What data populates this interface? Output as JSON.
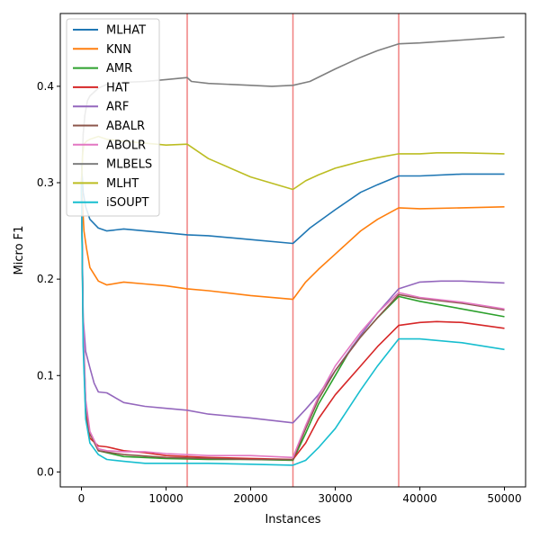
{
  "chart_data": {
    "type": "line",
    "xlabel": "Instances",
    "ylabel": "Micro F1",
    "xlim": [
      -2500,
      52500
    ],
    "ylim": [
      -0.0155,
      0.4755
    ],
    "xticks": [
      0,
      10000,
      20000,
      30000,
      40000,
      50000
    ],
    "xtick_labels": [
      "0",
      "10000",
      "20000",
      "30000",
      "40000",
      "50000"
    ],
    "yticks": [
      0.0,
      0.1,
      0.2,
      0.3,
      0.4
    ],
    "ytick_labels": [
      "0.0",
      "0.1",
      "0.2",
      "0.3",
      "0.4"
    ],
    "grid": false,
    "legend_position": "top-left",
    "vlines": [
      {
        "x": 12500,
        "color": "#f08080"
      },
      {
        "x": 25000,
        "color": "#f08080"
      },
      {
        "x": 37500,
        "color": "#f08080"
      }
    ],
    "series": [
      {
        "name": "MLHAT",
        "color": "#1f77b4",
        "points": [
          [
            0,
            0.32
          ],
          [
            200,
            0.29
          ],
          [
            500,
            0.275
          ],
          [
            1000,
            0.262
          ],
          [
            2000,
            0.253
          ],
          [
            3000,
            0.25
          ],
          [
            5000,
            0.252
          ],
          [
            7500,
            0.25
          ],
          [
            10000,
            0.248
          ],
          [
            12500,
            0.246
          ],
          [
            15000,
            0.245
          ],
          [
            20000,
            0.241
          ],
          [
            25000,
            0.237
          ],
          [
            27000,
            0.253
          ],
          [
            30000,
            0.272
          ],
          [
            33000,
            0.29
          ],
          [
            35000,
            0.298
          ],
          [
            37500,
            0.307
          ],
          [
            40000,
            0.307
          ],
          [
            45000,
            0.309
          ],
          [
            50000,
            0.309
          ]
        ]
      },
      {
        "name": "KNN",
        "color": "#ff7f0e",
        "points": [
          [
            0,
            0.3
          ],
          [
            300,
            0.25
          ],
          [
            600,
            0.232
          ],
          [
            1000,
            0.212
          ],
          [
            2000,
            0.198
          ],
          [
            3000,
            0.194
          ],
          [
            5000,
            0.197
          ],
          [
            7500,
            0.195
          ],
          [
            10000,
            0.193
          ],
          [
            12500,
            0.19
          ],
          [
            15000,
            0.188
          ],
          [
            20000,
            0.183
          ],
          [
            25000,
            0.179
          ],
          [
            26500,
            0.197
          ],
          [
            28000,
            0.21
          ],
          [
            30000,
            0.226
          ],
          [
            33000,
            0.25
          ],
          [
            35000,
            0.262
          ],
          [
            37500,
            0.274
          ],
          [
            40000,
            0.273
          ],
          [
            45000,
            0.274
          ],
          [
            50000,
            0.275
          ]
        ]
      },
      {
        "name": "AMR",
        "color": "#2ca02c",
        "points": [
          [
            0,
            0.3
          ],
          [
            200,
            0.15
          ],
          [
            500,
            0.07
          ],
          [
            1000,
            0.04
          ],
          [
            2000,
            0.022
          ],
          [
            3000,
            0.02
          ],
          [
            5000,
            0.016
          ],
          [
            10000,
            0.014
          ],
          [
            15000,
            0.013
          ],
          [
            20000,
            0.013
          ],
          [
            25000,
            0.012
          ],
          [
            26500,
            0.04
          ],
          [
            28000,
            0.07
          ],
          [
            30000,
            0.1
          ],
          [
            32000,
            0.13
          ],
          [
            35000,
            0.16
          ],
          [
            37500,
            0.182
          ],
          [
            40000,
            0.177
          ],
          [
            45000,
            0.169
          ],
          [
            50000,
            0.161
          ]
        ]
      },
      {
        "name": "HAT",
        "color": "#d62728",
        "points": [
          [
            0,
            0.3
          ],
          [
            200,
            0.14
          ],
          [
            500,
            0.06
          ],
          [
            1000,
            0.035
          ],
          [
            2000,
            0.027
          ],
          [
            3000,
            0.026
          ],
          [
            5000,
            0.022
          ],
          [
            7500,
            0.02
          ],
          [
            10000,
            0.017
          ],
          [
            15000,
            0.015
          ],
          [
            20000,
            0.014
          ],
          [
            25000,
            0.013
          ],
          [
            26500,
            0.03
          ],
          [
            28000,
            0.055
          ],
          [
            30000,
            0.08
          ],
          [
            33000,
            0.11
          ],
          [
            35000,
            0.13
          ],
          [
            37500,
            0.152
          ],
          [
            40000,
            0.155
          ],
          [
            42000,
            0.156
          ],
          [
            45000,
            0.155
          ],
          [
            50000,
            0.149
          ]
        ]
      },
      {
        "name": "ARF",
        "color": "#9467bd",
        "points": [
          [
            0,
            0.3
          ],
          [
            200,
            0.16
          ],
          [
            500,
            0.125
          ],
          [
            1000,
            0.108
          ],
          [
            1500,
            0.092
          ],
          [
            2000,
            0.083
          ],
          [
            3000,
            0.082
          ],
          [
            5000,
            0.072
          ],
          [
            7500,
            0.068
          ],
          [
            10000,
            0.066
          ],
          [
            12500,
            0.064
          ],
          [
            15000,
            0.06
          ],
          [
            20000,
            0.056
          ],
          [
            25000,
            0.051
          ],
          [
            26500,
            0.065
          ],
          [
            28000,
            0.08
          ],
          [
            30000,
            0.105
          ],
          [
            33000,
            0.142
          ],
          [
            35000,
            0.165
          ],
          [
            37500,
            0.19
          ],
          [
            40000,
            0.197
          ],
          [
            42500,
            0.198
          ],
          [
            45000,
            0.198
          ],
          [
            50000,
            0.196
          ]
        ]
      },
      {
        "name": "ABALR",
        "color": "#8c564b",
        "points": [
          [
            0,
            0.3
          ],
          [
            200,
            0.15
          ],
          [
            500,
            0.07
          ],
          [
            1000,
            0.04
          ],
          [
            2000,
            0.022
          ],
          [
            5000,
            0.018
          ],
          [
            10000,
            0.015
          ],
          [
            15000,
            0.014
          ],
          [
            20000,
            0.013
          ],
          [
            25000,
            0.013
          ],
          [
            26500,
            0.045
          ],
          [
            28000,
            0.075
          ],
          [
            30000,
            0.105
          ],
          [
            33000,
            0.14
          ],
          [
            35000,
            0.16
          ],
          [
            37500,
            0.184
          ],
          [
            40000,
            0.18
          ],
          [
            45000,
            0.175
          ],
          [
            50000,
            0.168
          ]
        ]
      },
      {
        "name": "ABOLR",
        "color": "#e377c2",
        "points": [
          [
            0,
            0.3
          ],
          [
            200,
            0.16
          ],
          [
            500,
            0.075
          ],
          [
            1000,
            0.042
          ],
          [
            2000,
            0.024
          ],
          [
            3000,
            0.022
          ],
          [
            5000,
            0.021
          ],
          [
            7500,
            0.021
          ],
          [
            10000,
            0.019
          ],
          [
            15000,
            0.017
          ],
          [
            20000,
            0.017
          ],
          [
            25000,
            0.015
          ],
          [
            26500,
            0.048
          ],
          [
            28000,
            0.078
          ],
          [
            30000,
            0.11
          ],
          [
            33000,
            0.145
          ],
          [
            35000,
            0.165
          ],
          [
            37500,
            0.186
          ],
          [
            40000,
            0.181
          ],
          [
            45000,
            0.176
          ],
          [
            50000,
            0.169
          ]
        ]
      },
      {
        "name": "MLBELS",
        "color": "#7f7f7f",
        "points": [
          [
            0,
            0.3
          ],
          [
            100,
            0.32
          ],
          [
            200,
            0.35
          ],
          [
            400,
            0.37
          ],
          [
            700,
            0.385
          ],
          [
            1000,
            0.39
          ],
          [
            2000,
            0.398
          ],
          [
            3000,
            0.402
          ],
          [
            5000,
            0.404
          ],
          [
            7500,
            0.405
          ],
          [
            10000,
            0.407
          ],
          [
            12500,
            0.409
          ],
          [
            13000,
            0.405
          ],
          [
            15000,
            0.403
          ],
          [
            20000,
            0.401
          ],
          [
            22500,
            0.4
          ],
          [
            25000,
            0.401
          ],
          [
            27000,
            0.405
          ],
          [
            30000,
            0.418
          ],
          [
            33000,
            0.43
          ],
          [
            35000,
            0.437
          ],
          [
            37500,
            0.444
          ],
          [
            40000,
            0.445
          ],
          [
            45000,
            0.448
          ],
          [
            50000,
            0.451
          ]
        ]
      },
      {
        "name": "MLHT",
        "color": "#bcbd22",
        "points": [
          [
            0,
            0.3
          ],
          [
            150,
            0.33
          ],
          [
            300,
            0.34
          ],
          [
            600,
            0.343
          ],
          [
            1000,
            0.345
          ],
          [
            2000,
            0.348
          ],
          [
            3000,
            0.345
          ],
          [
            5000,
            0.343
          ],
          [
            7500,
            0.341
          ],
          [
            10000,
            0.339
          ],
          [
            12500,
            0.34
          ],
          [
            15000,
            0.325
          ],
          [
            20000,
            0.306
          ],
          [
            25000,
            0.293
          ],
          [
            26500,
            0.302
          ],
          [
            28000,
            0.308
          ],
          [
            30000,
            0.315
          ],
          [
            33000,
            0.322
          ],
          [
            35000,
            0.326
          ],
          [
            37500,
            0.33
          ],
          [
            40000,
            0.33
          ],
          [
            42000,
            0.331
          ],
          [
            45000,
            0.331
          ],
          [
            50000,
            0.33
          ]
        ]
      },
      {
        "name": "iSOUPT",
        "color": "#17becf",
        "points": [
          [
            0,
            0.3
          ],
          [
            200,
            0.13
          ],
          [
            500,
            0.055
          ],
          [
            1000,
            0.03
          ],
          [
            2000,
            0.018
          ],
          [
            3000,
            0.013
          ],
          [
            5000,
            0.011
          ],
          [
            7500,
            0.009
          ],
          [
            10000,
            0.009
          ],
          [
            15000,
            0.009
          ],
          [
            20000,
            0.008
          ],
          [
            25000,
            0.007
          ],
          [
            26500,
            0.012
          ],
          [
            28000,
            0.025
          ],
          [
            30000,
            0.045
          ],
          [
            33000,
            0.085
          ],
          [
            35000,
            0.11
          ],
          [
            37500,
            0.138
          ],
          [
            40000,
            0.138
          ],
          [
            45000,
            0.134
          ],
          [
            50000,
            0.127
          ]
        ]
      }
    ]
  }
}
